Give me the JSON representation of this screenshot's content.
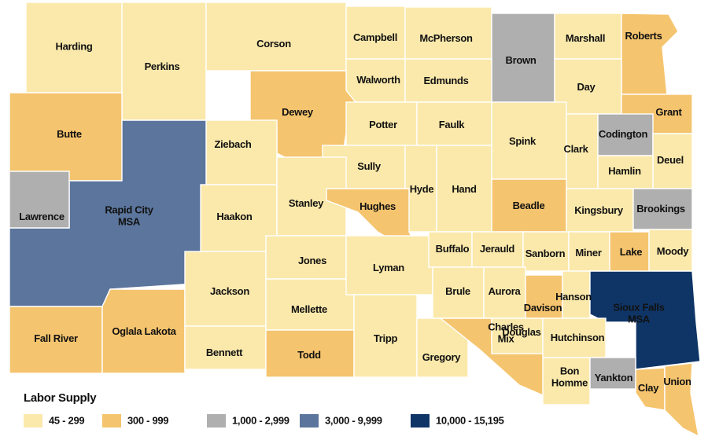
{
  "map": {
    "legend": {
      "title": "Labor Supply",
      "classes": [
        {
          "label": "45 - 299",
          "color": "#fbe9ab"
        },
        {
          "label": "300 - 999",
          "color": "#f5c46e"
        },
        {
          "label": "1,000 - 2,999",
          "color": "#afafaf"
        },
        {
          "label": "3,000 - 9,999",
          "color": "#5b759c"
        },
        {
          "label": "10,000 - 15,195",
          "color": "#0f3567"
        }
      ]
    },
    "counties": [
      {
        "label": [
          "Harding"
        ],
        "class": 0
      },
      {
        "label": [
          "Perkins"
        ],
        "class": 0
      },
      {
        "label": [
          "Corson"
        ],
        "class": 0
      },
      {
        "label": [
          "Campbell"
        ],
        "class": 0
      },
      {
        "label": [
          "McPherson"
        ],
        "class": 0
      },
      {
        "label": [
          "Brown"
        ],
        "class": 2
      },
      {
        "label": [
          "Marshall"
        ],
        "class": 0
      },
      {
        "label": [
          "Roberts"
        ],
        "class": 1
      },
      {
        "label": [
          "Walworth"
        ],
        "class": 0
      },
      {
        "label": [
          "Edmunds"
        ],
        "class": 0
      },
      {
        "label": [
          "Day"
        ],
        "class": 0
      },
      {
        "label": [
          "Grant"
        ],
        "class": 1
      },
      {
        "label": [
          "Butte"
        ],
        "class": 1
      },
      {
        "label": [
          "Dewey"
        ],
        "class": 1
      },
      {
        "label": [
          "Ziebach"
        ],
        "class": 0
      },
      {
        "label": [
          "Rapid City",
          "MSA"
        ],
        "class": 3
      },
      {
        "label": [
          "Lawrence"
        ],
        "class": 2
      },
      {
        "label": [
          "Potter"
        ],
        "class": 0
      },
      {
        "label": [
          "Faulk"
        ],
        "class": 0
      },
      {
        "label": [
          "Spink"
        ],
        "class": 0
      },
      {
        "label": [
          "Clark"
        ],
        "class": 0
      },
      {
        "label": [
          "Codington"
        ],
        "class": 2
      },
      {
        "label": [
          "Deuel"
        ],
        "class": 0
      },
      {
        "label": [
          "Hamlin"
        ],
        "class": 0
      },
      {
        "label": [
          "Sully"
        ],
        "class": 0
      },
      {
        "label": [
          "Hyde"
        ],
        "class": 0
      },
      {
        "label": [
          "Hand"
        ],
        "class": 0
      },
      {
        "label": [
          "Beadle"
        ],
        "class": 1
      },
      {
        "label": [
          "Kingsbury"
        ],
        "class": 0
      },
      {
        "label": [
          "Brookings"
        ],
        "class": 2
      },
      {
        "label": [
          "Haakon"
        ],
        "class": 0
      },
      {
        "label": [
          "Stanley"
        ],
        "class": 0
      },
      {
        "label": [
          "Hughes"
        ],
        "class": 1
      },
      {
        "label": [
          "Fall River"
        ],
        "class": 1
      },
      {
        "label": [
          "Oglala Lakota"
        ],
        "class": 1
      },
      {
        "label": [
          "Jackson"
        ],
        "class": 0
      },
      {
        "label": [
          "Bennett"
        ],
        "class": 0
      },
      {
        "label": [
          "Jones"
        ],
        "class": 0
      },
      {
        "label": [
          "Mellette"
        ],
        "class": 0
      },
      {
        "label": [
          "Todd"
        ],
        "class": 1
      },
      {
        "label": [
          "Lyman"
        ],
        "class": 0
      },
      {
        "label": [
          "Tripp"
        ],
        "class": 0
      },
      {
        "label": [
          "Gregory"
        ],
        "class": 0
      },
      {
        "label": [
          "Buffalo"
        ],
        "class": 0
      },
      {
        "label": [
          "Jerauld"
        ],
        "class": 0
      },
      {
        "label": [
          "Sanborn"
        ],
        "class": 0
      },
      {
        "label": [
          "Miner"
        ],
        "class": 0
      },
      {
        "label": [
          "Lake"
        ],
        "class": 1
      },
      {
        "label": [
          "Moody"
        ],
        "class": 0
      },
      {
        "label": [
          "Brule"
        ],
        "class": 0
      },
      {
        "label": [
          "Aurora"
        ],
        "class": 0
      },
      {
        "label": [
          "Davison"
        ],
        "class": 1
      },
      {
        "label": [
          "Hanson"
        ],
        "class": 0
      },
      {
        "label": [
          "Sioux Falls",
          "MSA"
        ],
        "class": 4
      },
      {
        "label": [
          "Charles",
          "Mix"
        ],
        "class": 1
      },
      {
        "label": [
          "Douglas"
        ],
        "class": 0
      },
      {
        "label": [
          "Hutchinson"
        ],
        "class": 0
      },
      {
        "label": [
          "Bon",
          "Homme"
        ],
        "class": 0
      },
      {
        "label": [
          "Yankton"
        ],
        "class": 2
      },
      {
        "label": [
          "Clay"
        ],
        "class": 1
      },
      {
        "label": [
          "Union"
        ],
        "class": 1
      }
    ]
  }
}
